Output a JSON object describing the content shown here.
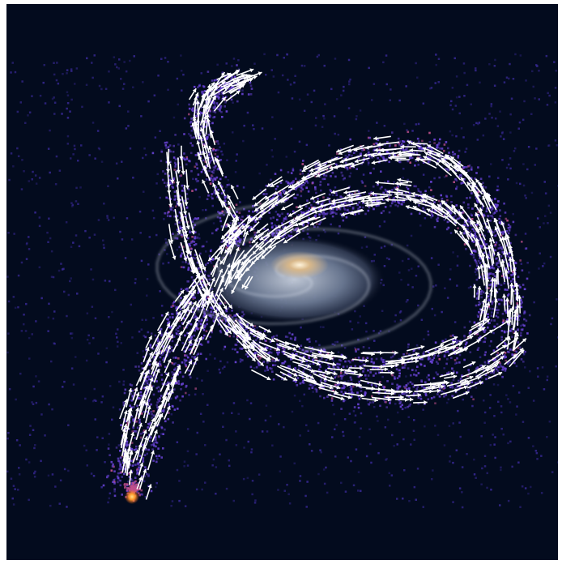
{
  "image": {
    "subject": "stellar-stream-around-spiral-galaxy",
    "content_text": [],
    "colors": {
      "frame": "#ffffff",
      "background": "#030b1e",
      "sparse_stars": "#3a2a9a",
      "stream_stars": "#6a44d8",
      "dense_stars": "#c0508c",
      "hot_spot": "#ffb23a",
      "flow_arrows": "#ffffff",
      "galaxy_core": "#f6e4c4",
      "galaxy_disk": "#7e8ca4"
    },
    "elements": {
      "star_field": "scattered-star-particles",
      "stellar_stream": "looping-tidal-stream",
      "velocity_vectors": "white-arrow-field",
      "galaxy": "tilted-spiral-galaxy"
    }
  }
}
